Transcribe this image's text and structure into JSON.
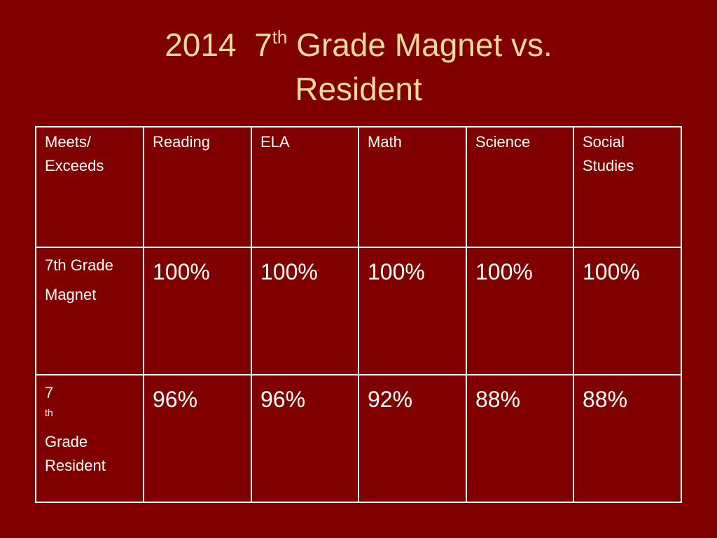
{
  "slide": {
    "title_year": "2014",
    "title_grade_num": "7",
    "title_grade_sup": "th",
    "title_rest": "Grade Magnet vs.",
    "title_line2": "Resident"
  },
  "table": {
    "header": {
      "corner_line1": "Meets/",
      "corner_line2": "Exceeds",
      "columns": [
        "Reading",
        "ELA",
        "Math",
        "Science"
      ],
      "social_line1": "Social",
      "social_line2": "Studies"
    },
    "rows": [
      {
        "label_line1": "7th Grade",
        "label_line2": "Magnet",
        "values": [
          "100%",
          "100%",
          "100%",
          "100%",
          "100%"
        ]
      },
      {
        "label_num": "7",
        "label_sup": "th",
        "label_rest": "Grade",
        "label_line2": "Resident",
        "values": [
          "96%",
          "96%",
          "92%",
          "88%",
          "88%"
        ]
      }
    ]
  }
}
